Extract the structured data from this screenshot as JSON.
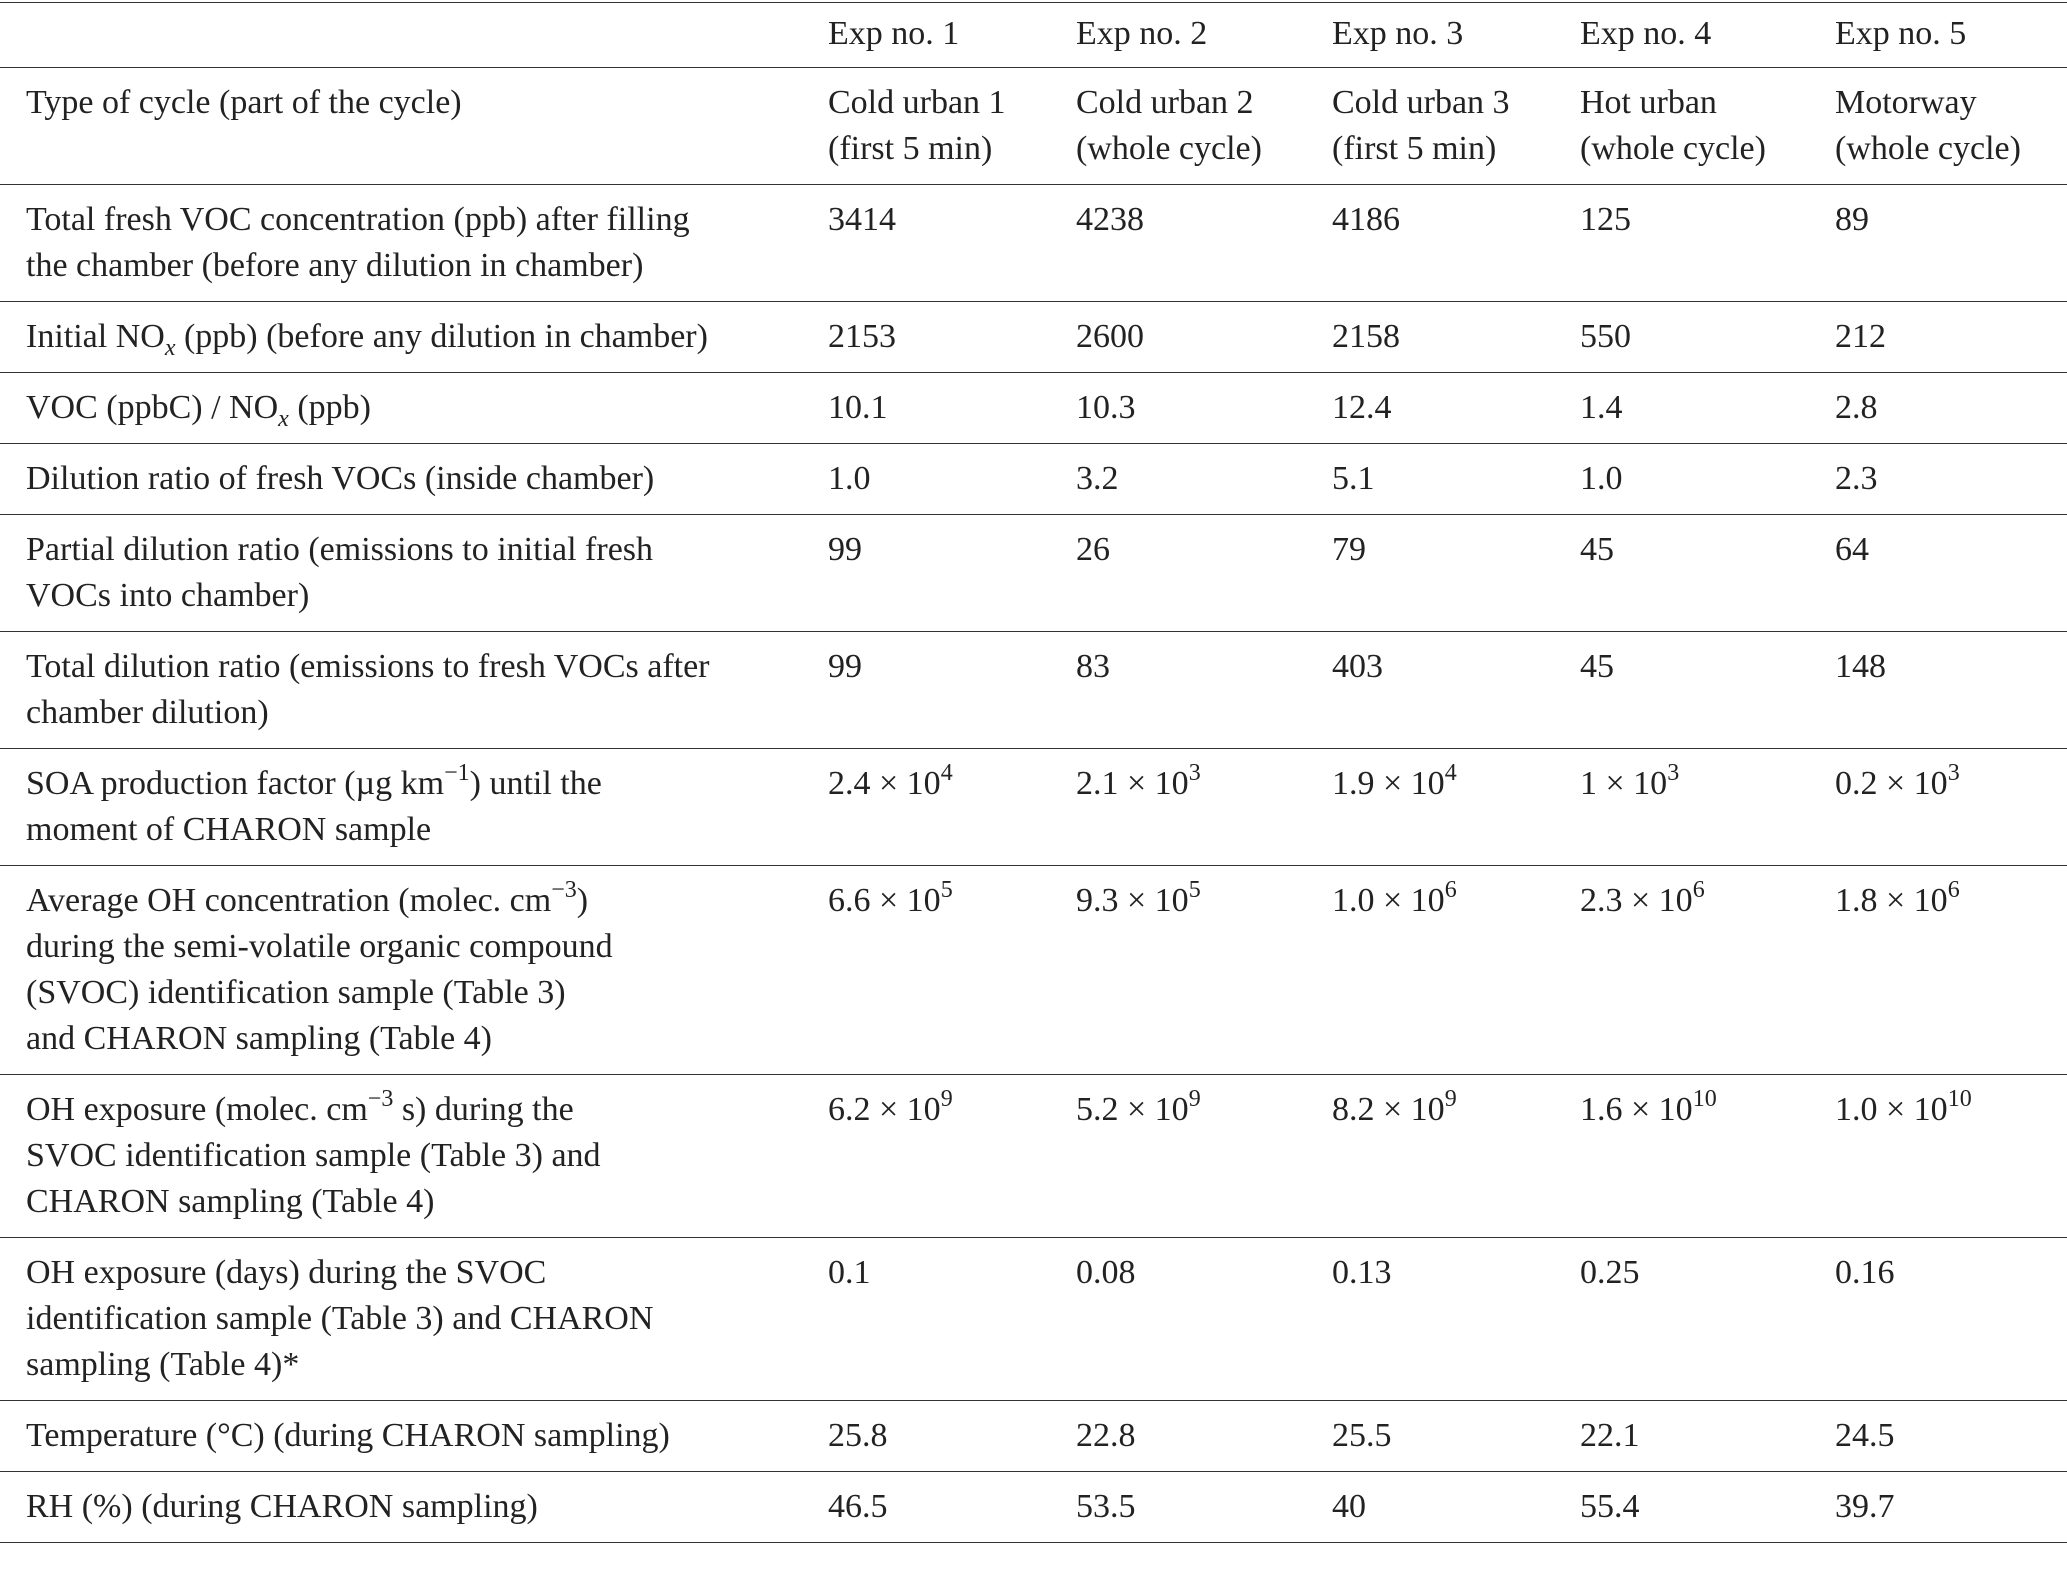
{
  "table": {
    "header": [
      "Exp no. 1",
      "Exp no. 2",
      "Exp no. 3",
      "Exp no. 4",
      "Exp no. 5"
    ],
    "rows": [
      {
        "label": "Type of cycle (part of the cycle)",
        "cells": [
          [
            "Cold urban 1",
            "(first 5 min)"
          ],
          [
            "Cold urban 2",
            "(whole cycle)"
          ],
          [
            "Cold urban 3",
            "(first 5 min)"
          ],
          [
            "Hot urban",
            "(whole cycle)"
          ],
          [
            "Motorway",
            "(whole cycle)"
          ]
        ]
      },
      {
        "label": [
          "Total fresh VOC concentration (ppb) after filling",
          "the chamber (before any dilution in chamber)"
        ],
        "cells": [
          "3414",
          "4238",
          "4186",
          "125",
          "89"
        ]
      },
      {
        "label": [
          [
            "Initial NO",
            {
              "sub": "x"
            },
            " (ppb) (before any dilution in chamber)"
          ]
        ],
        "cells": [
          "2153",
          "2600",
          "2158",
          "550",
          "212"
        ]
      },
      {
        "label": [
          [
            "VOC (ppbC) / NO",
            {
              "sub": "x"
            },
            " (ppb)"
          ]
        ],
        "cells": [
          "10.1",
          "10.3",
          "12.4",
          "1.4",
          "2.8"
        ]
      },
      {
        "label": "Dilution ratio of fresh VOCs (inside chamber)",
        "cells": [
          "1.0",
          "3.2",
          "5.1",
          "1.0",
          "2.3"
        ]
      },
      {
        "label": [
          "Partial dilution ratio (emissions to initial fresh",
          "VOCs into chamber)"
        ],
        "cells": [
          "99",
          "26",
          "79",
          "45",
          "64"
        ]
      },
      {
        "label": [
          "Total dilution ratio (emissions to fresh VOCs after",
          "chamber dilution)"
        ],
        "cells": [
          "99",
          "83",
          "403",
          "45",
          "148"
        ]
      },
      {
        "label": [
          [
            "SOA production factor (µg km",
            {
              "sup": "−1"
            },
            ") until the"
          ],
          "moment of CHARON sample"
        ],
        "cells": [
          [
            [
              "2.4 × 10",
              {
                "sup": "4"
              }
            ]
          ],
          [
            [
              "2.1 × 10",
              {
                "sup": "3"
              }
            ]
          ],
          [
            [
              "1.9 × 10",
              {
                "sup": "4"
              }
            ]
          ],
          [
            [
              "1 × 10",
              {
                "sup": "3"
              }
            ]
          ],
          [
            [
              "0.2 × 10",
              {
                "sup": "3"
              }
            ]
          ]
        ]
      },
      {
        "label": [
          [
            "Average OH concentration (molec. cm",
            {
              "sup": "−3"
            },
            ")"
          ],
          "during the semi-volatile organic compound",
          "(SVOC) identification sample (Table 3)",
          "and CHARON sampling (Table 4)"
        ],
        "cells": [
          [
            [
              "6.6 × 10",
              {
                "sup": "5"
              }
            ]
          ],
          [
            [
              "9.3 × 10",
              {
                "sup": "5"
              }
            ]
          ],
          [
            [
              "1.0 × 10",
              {
                "sup": "6"
              }
            ]
          ],
          [
            [
              "2.3 × 10",
              {
                "sup": "6"
              }
            ]
          ],
          [
            [
              "1.8 × 10",
              {
                "sup": "6"
              }
            ]
          ]
        ]
      },
      {
        "label": [
          [
            "OH exposure (molec. cm",
            {
              "sup": "−3"
            },
            " s) during the"
          ],
          "SVOC identification sample (Table 3) and",
          "CHARON sampling (Table 4)"
        ],
        "cells": [
          [
            [
              "6.2 × 10",
              {
                "sup": "9"
              }
            ]
          ],
          [
            [
              "5.2 × 10",
              {
                "sup": "9"
              }
            ]
          ],
          [
            [
              "8.2 × 10",
              {
                "sup": "9"
              }
            ]
          ],
          [
            [
              "1.6 × 10",
              {
                "sup": "10"
              }
            ]
          ],
          [
            [
              "1.0 × 10",
              {
                "sup": "10"
              }
            ]
          ]
        ]
      },
      {
        "label": [
          "OH exposure (days) during the SVOC",
          "identification sample (Table 3) and CHARON",
          "sampling (Table 4)*"
        ],
        "cells": [
          "0.1",
          "0.08",
          "0.13",
          "0.25",
          "0.16"
        ]
      },
      {
        "label": "Temperature (°C) (during CHARON sampling)",
        "cells": [
          "25.8",
          "22.8",
          "25.5",
          "22.1",
          "24.5"
        ]
      },
      {
        "label": "RH (%) (during CHARON sampling)",
        "cells": [
          "46.5",
          "53.5",
          "40",
          "55.4",
          "39.7"
        ]
      }
    ]
  }
}
